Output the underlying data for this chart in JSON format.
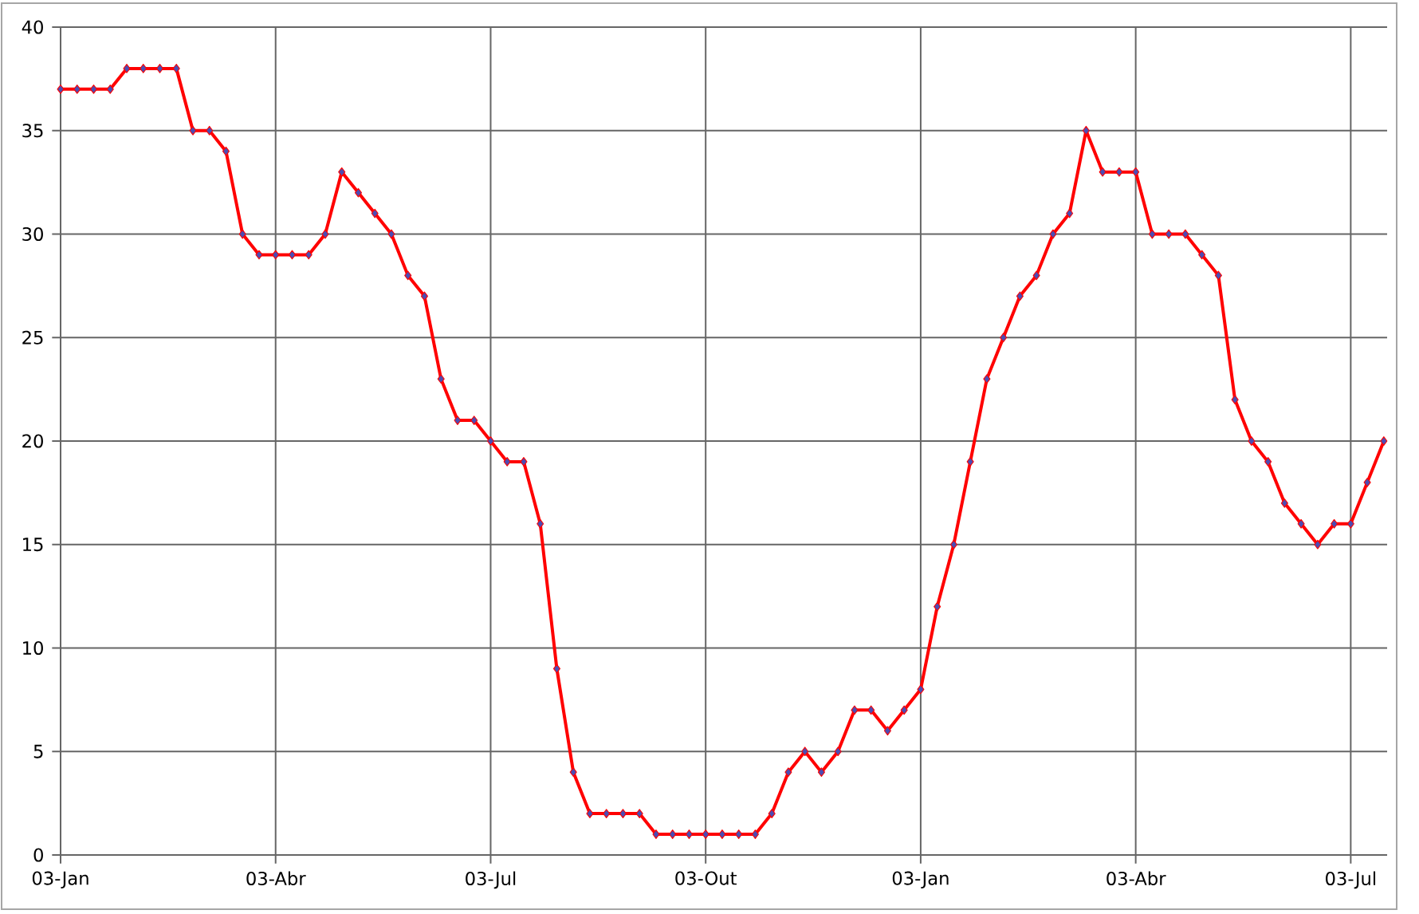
{
  "chart_data": {
    "type": "line",
    "categories": [
      "03-Jan",
      null,
      null,
      null,
      null,
      null,
      null,
      null,
      null,
      null,
      null,
      null,
      null,
      "03-Abr",
      null,
      null,
      null,
      null,
      null,
      null,
      null,
      null,
      null,
      null,
      null,
      null,
      "03-Jul",
      null,
      null,
      null,
      null,
      null,
      null,
      null,
      null,
      null,
      null,
      null,
      null,
      "03-Out",
      null,
      null,
      null,
      null,
      null,
      null,
      null,
      null,
      null,
      null,
      null,
      null,
      "03-Jan",
      null,
      null,
      null,
      null,
      null,
      null,
      null,
      null,
      null,
      null,
      null,
      null,
      "03-Abr",
      null,
      null,
      null,
      null,
      null,
      null,
      null,
      null,
      null,
      null,
      null,
      null,
      "03-Jul",
      null,
      null
    ],
    "series": [
      {
        "color": "#ff0000",
        "values": [
          37,
          37,
          37,
          37,
          38,
          38,
          38,
          38,
          35,
          35,
          34,
          30,
          29,
          29,
          29,
          29,
          30,
          33,
          32,
          31,
          30,
          28,
          27,
          23,
          21,
          21,
          20,
          19,
          19,
          16,
          9,
          4,
          2,
          2,
          2,
          2,
          1,
          1,
          1,
          1,
          1,
          1,
          1,
          2,
          4,
          5,
          4,
          5,
          7,
          7,
          6,
          7,
          8,
          12,
          15,
          19,
          23,
          25,
          27,
          28,
          30,
          31,
          35,
          33,
          33,
          33,
          30,
          30,
          30,
          29,
          28,
          22,
          20,
          19,
          17,
          16,
          15,
          16,
          16,
          18,
          20
        ]
      }
    ],
    "ylim": [
      0,
      40
    ],
    "yticks": [
      0,
      5,
      10,
      15,
      20,
      25,
      30,
      35,
      40
    ],
    "grid": true,
    "marker": "diamond",
    "line_style": "solid"
  }
}
